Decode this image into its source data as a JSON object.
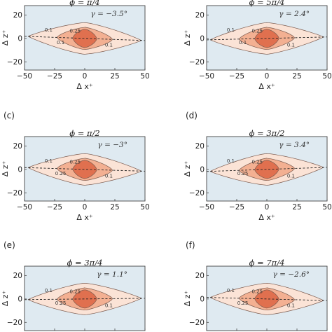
{
  "chart_data": {
    "type": "contour",
    "colors": {
      "background": "#dfeaf1",
      "level_0_1": "#fbe3d6",
      "level_0_25": "#f3b092",
      "level_0_5": "#e0704f",
      "outline": "#7a5a4e",
      "fit_line": "#222222"
    },
    "contour_levels": [
      "0.1",
      "0.25",
      "0.5"
    ],
    "x_ticks": [
      -50,
      -25,
      0,
      25,
      50
    ],
    "y_ticks": [
      -20,
      0,
      20
    ],
    "xlim": [
      -50,
      50
    ],
    "ylim": [
      -27,
      28
    ],
    "panels": [
      {
        "label": "",
        "title": "ϕ = π/4",
        "gamma": "γ = −3.5°",
        "gamma_deg": -3.5,
        "xlabel": "Δ x⁺",
        "ylabel": "Δ z⁺",
        "contour_labels": [
          "0.1",
          "0.25",
          "0.1",
          "0.1"
        ]
      },
      {
        "label": "",
        "title": "ϕ = 5π/4",
        "gamma": "γ = 2.4°",
        "gamma_deg": 2.4,
        "xlabel": "Δ x⁺",
        "ylabel": "Δ z⁺",
        "contour_labels": [
          "0.1",
          "0.25",
          "0.1",
          "0.1"
        ]
      },
      {
        "label": "(c)",
        "title": "ϕ = π/2",
        "gamma": "γ = −3°",
        "gamma_deg": -3.0,
        "xlabel": "Δ x⁺",
        "ylabel": "Δ z⁺",
        "contour_labels": [
          "0.1",
          "0.25",
          "0.25",
          "0.1"
        ]
      },
      {
        "label": "(d)",
        "title": "ϕ = 3π/2",
        "gamma": "γ = 3.4°",
        "gamma_deg": 3.4,
        "xlabel": "Δ x⁺",
        "ylabel": "Δ z⁺",
        "contour_labels": [
          "0.1",
          "0.25",
          "0.25",
          "0.1"
        ]
      },
      {
        "label": "(e)",
        "title": "ϕ = 3π/4",
        "gamma": "γ = 1.1°",
        "gamma_deg": 1.1,
        "xlabel": "",
        "ylabel": "Δ z⁺",
        "contour_labels": [
          "0.1",
          "0.25",
          "0.25",
          "0.1"
        ]
      },
      {
        "label": "(f)",
        "title": "ϕ = 7π/4",
        "gamma": "γ = −2.6°",
        "gamma_deg": -2.6,
        "xlabel": "",
        "ylabel": "Δ z⁺",
        "contour_labels": [
          "0.1",
          "0.25",
          "0.25",
          "0.1"
        ]
      }
    ]
  }
}
